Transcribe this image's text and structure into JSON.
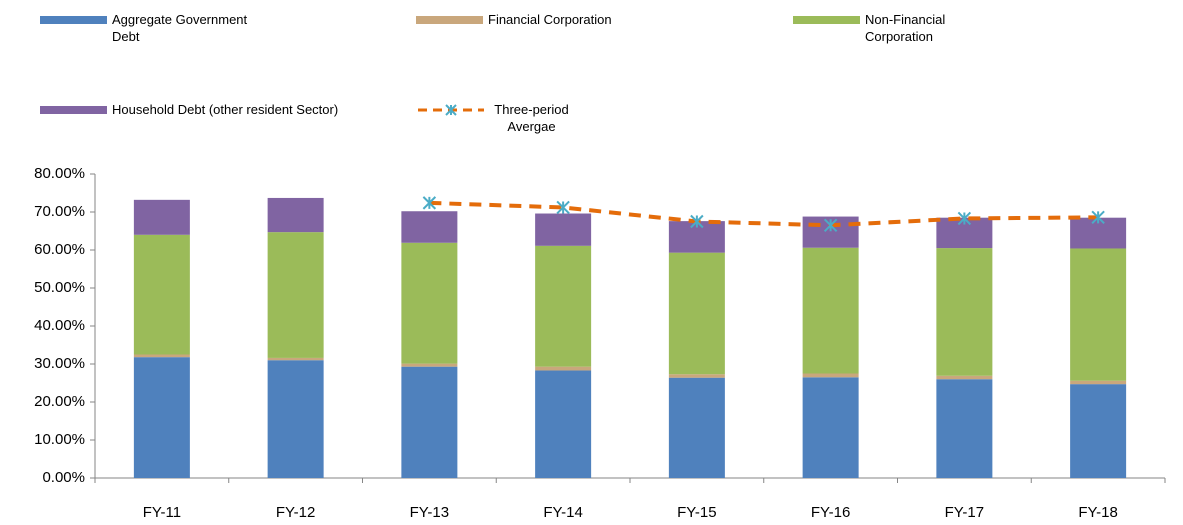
{
  "chart_data": {
    "type": "stacked-bar-line",
    "categories": [
      "FY-11",
      "FY-12",
      "FY-13",
      "FY-14",
      "FY-15",
      "FY-16",
      "FY-17",
      "FY-18"
    ],
    "series": [
      {
        "name": "Aggregate Government Debt",
        "color": "#4f81bd",
        "type": "bar",
        "values": [
          31.8,
          31.0,
          29.3,
          28.3,
          26.4,
          26.5,
          26.0,
          24.7
        ]
      },
      {
        "name": "Financial Corporation",
        "color": "#c9a77c",
        "type": "bar",
        "values": [
          0.7,
          0.6,
          0.8,
          1.0,
          0.9,
          1.0,
          0.9,
          0.9
        ]
      },
      {
        "name": "Non-Financial Corporation",
        "color": "#9bbb59",
        "type": "bar",
        "values": [
          31.5,
          33.1,
          31.8,
          31.8,
          32.0,
          33.1,
          33.6,
          34.8
        ]
      },
      {
        "name": "Household Debt (other resident Sector)",
        "color": "#8064a2",
        "type": "bar",
        "values": [
          9.2,
          9.0,
          8.3,
          8.5,
          8.3,
          8.2,
          8.0,
          8.1
        ]
      },
      {
        "name": "Three-period Avergae",
        "color": "#e46c0a",
        "marker_color": "#4bacc6",
        "type": "line",
        "values": [
          null,
          null,
          72.4,
          71.2,
          67.5,
          66.5,
          68.3,
          68.6
        ]
      }
    ],
    "ylim": [
      0,
      80
    ],
    "yticks": [
      {
        "value": 0,
        "label": "0.00%"
      },
      {
        "value": 10,
        "label": "10.00%"
      },
      {
        "value": 20,
        "label": "20.00%"
      },
      {
        "value": 30,
        "label": "30.00%"
      },
      {
        "value": 40,
        "label": "40.00%"
      },
      {
        "value": 50,
        "label": "50.00%"
      },
      {
        "value": 60,
        "label": "60.00%"
      },
      {
        "value": 70,
        "label": "70.00%"
      },
      {
        "value": 80,
        "label": "80.00%"
      }
    ],
    "grid": false
  }
}
